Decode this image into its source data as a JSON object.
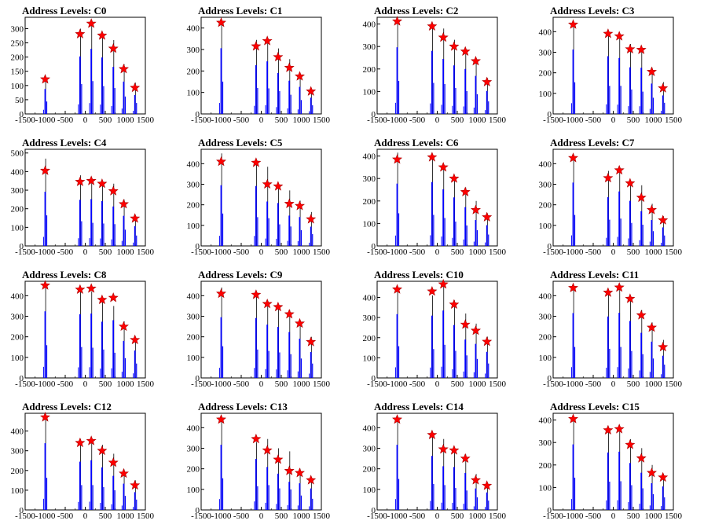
{
  "figure": {
    "panel_count": 16,
    "layout": "4x4 grid",
    "background": "#ffffff"
  },
  "style": {
    "bar_color": "#0000ff",
    "spike_color": "#000000",
    "marker_color": "#ff0000",
    "marker": "star"
  },
  "chart_data": [
    {
      "type": "bar",
      "title": "Address Levels: C0",
      "xlim": [
        -1500,
        1500
      ],
      "ylim": [
        0,
        340
      ],
      "xticks": [
        "-1500",
        "-1000",
        "-500",
        "0",
        "500",
        "1000",
        "1500"
      ],
      "yticks": [
        "0",
        "50",
        "100",
        "150",
        "200",
        "250",
        "300"
      ],
      "peaks": [
        {
          "x": -1000,
          "y": 122,
          "bar": 125
        },
        {
          "x": -130,
          "y": 281,
          "bar": 300
        },
        {
          "x": 150,
          "y": 318,
          "bar": 330
        },
        {
          "x": 420,
          "y": 276,
          "bar": 280
        },
        {
          "x": 700,
          "y": 230,
          "bar": 260
        },
        {
          "x": 960,
          "y": 158,
          "bar": 175
        },
        {
          "x": 1240,
          "y": 92,
          "bar": 110
        }
      ]
    },
    {
      "type": "bar",
      "title": "Address Levels: C1",
      "xlim": [
        -1500,
        1500
      ],
      "ylim": [
        0,
        450
      ],
      "xticks": [
        "-1500",
        "-1000",
        "-500",
        "0",
        "500",
        "1000",
        "1500"
      ],
      "yticks": [
        "0",
        "100",
        "200",
        "300",
        "400"
      ],
      "peaks": [
        {
          "x": -1000,
          "y": 425,
          "bar": 430
        },
        {
          "x": -130,
          "y": 315,
          "bar": 345
        },
        {
          "x": 150,
          "y": 340,
          "bar": 340
        },
        {
          "x": 420,
          "y": 265,
          "bar": 305
        },
        {
          "x": 700,
          "y": 215,
          "bar": 255
        },
        {
          "x": 960,
          "y": 175,
          "bar": 185
        },
        {
          "x": 1240,
          "y": 105,
          "bar": 115
        }
      ]
    },
    {
      "type": "bar",
      "title": "Address Levels: C2",
      "xlim": [
        -1500,
        1500
      ],
      "ylim": [
        0,
        430
      ],
      "xticks": [
        "-1500",
        "-1000",
        "-500",
        "0",
        "500",
        "1000",
        "1500"
      ],
      "yticks": [
        "0",
        "100",
        "200",
        "300",
        "400"
      ],
      "peaks": [
        {
          "x": -1000,
          "y": 412,
          "bar": 420
        },
        {
          "x": -130,
          "y": 390,
          "bar": 395
        },
        {
          "x": 150,
          "y": 340,
          "bar": 380
        },
        {
          "x": 420,
          "y": 300,
          "bar": 330
        },
        {
          "x": 700,
          "y": 278,
          "bar": 290
        },
        {
          "x": 960,
          "y": 235,
          "bar": 250
        },
        {
          "x": 1240,
          "y": 142,
          "bar": 160
        }
      ]
    },
    {
      "type": "bar",
      "title": "Address Levels: C3",
      "xlim": [
        -1500,
        1500
      ],
      "ylim": [
        0,
        470
      ],
      "xticks": [
        "-1500",
        "-1000",
        "-500",
        "0",
        "500",
        "1000",
        "1500"
      ],
      "yticks": [
        "0",
        "100",
        "200",
        "300",
        "400"
      ],
      "peaks": [
        {
          "x": -1000,
          "y": 435,
          "bar": 440
        },
        {
          "x": -130,
          "y": 390,
          "bar": 390
        },
        {
          "x": 150,
          "y": 378,
          "bar": 390
        },
        {
          "x": 420,
          "y": 315,
          "bar": 340
        },
        {
          "x": 700,
          "y": 312,
          "bar": 310
        },
        {
          "x": 960,
          "y": 205,
          "bar": 225
        },
        {
          "x": 1240,
          "y": 125,
          "bar": 155
        }
      ]
    },
    {
      "type": "bar",
      "title": "Address Levels: C4",
      "xlim": [
        -1500,
        1500
      ],
      "ylim": [
        0,
        520
      ],
      "xticks": [
        "-1500",
        "-1000",
        "-500",
        "0",
        "500",
        "1000",
        "1500"
      ],
      "yticks": [
        "0",
        "100",
        "200",
        "300",
        "400",
        "500"
      ],
      "peaks": [
        {
          "x": -1000,
          "y": 405,
          "bar": 470
        },
        {
          "x": -130,
          "y": 345,
          "bar": 380
        },
        {
          "x": 150,
          "y": 350,
          "bar": 355
        },
        {
          "x": 420,
          "y": 335,
          "bar": 345
        },
        {
          "x": 700,
          "y": 295,
          "bar": 335
        },
        {
          "x": 960,
          "y": 225,
          "bar": 250
        },
        {
          "x": 1240,
          "y": 148,
          "bar": 160
        }
      ]
    },
    {
      "type": "bar",
      "title": "Address Levels: C5",
      "xlim": [
        -1500,
        1500
      ],
      "ylim": [
        0,
        470
      ],
      "xticks": [
        "-1500",
        "-1000",
        "-500",
        "0",
        "500",
        "1000",
        "1500"
      ],
      "yticks": [
        "0",
        "100",
        "200",
        "300",
        "400"
      ],
      "peaks": [
        {
          "x": -1000,
          "y": 410,
          "bar": 450
        },
        {
          "x": -130,
          "y": 405,
          "bar": 400
        },
        {
          "x": 150,
          "y": 300,
          "bar": 385
        },
        {
          "x": 420,
          "y": 290,
          "bar": 300
        },
        {
          "x": 700,
          "y": 205,
          "bar": 270
        },
        {
          "x": 960,
          "y": 195,
          "bar": 220
        },
        {
          "x": 1240,
          "y": 130,
          "bar": 165
        }
      ]
    },
    {
      "type": "bar",
      "title": "Address Levels: C6",
      "xlim": [
        -1500,
        1500
      ],
      "ylim": [
        0,
        430
      ],
      "xticks": [
        "-1500",
        "-1000",
        "-500",
        "0",
        "500",
        "1000",
        "1500"
      ],
      "yticks": [
        "0",
        "100",
        "200",
        "300",
        "400"
      ],
      "peaks": [
        {
          "x": -1000,
          "y": 385,
          "bar": 415
        },
        {
          "x": -130,
          "y": 395,
          "bar": 395
        },
        {
          "x": 150,
          "y": 350,
          "bar": 355
        },
        {
          "x": 420,
          "y": 300,
          "bar": 310
        },
        {
          "x": 700,
          "y": 240,
          "bar": 260
        },
        {
          "x": 960,
          "y": 160,
          "bar": 200
        },
        {
          "x": 1240,
          "y": 128,
          "bar": 145
        }
      ]
    },
    {
      "type": "bar",
      "title": "Address Levels: C7",
      "xlim": [
        -1500,
        1500
      ],
      "ylim": [
        0,
        470
      ],
      "xticks": [
        "-1500",
        "-1000",
        "-500",
        "0",
        "500",
        "1000",
        "1500"
      ],
      "yticks": [
        "0",
        "100",
        "200",
        "300",
        "400"
      ],
      "peaks": [
        {
          "x": -1000,
          "y": 428,
          "bar": 430
        },
        {
          "x": -130,
          "y": 330,
          "bar": 365
        },
        {
          "x": 150,
          "y": 368,
          "bar": 380
        },
        {
          "x": 420,
          "y": 305,
          "bar": 320
        },
        {
          "x": 700,
          "y": 235,
          "bar": 295
        },
        {
          "x": 960,
          "y": 175,
          "bar": 205
        },
        {
          "x": 1240,
          "y": 125,
          "bar": 145
        }
      ]
    },
    {
      "type": "bar",
      "title": "Address Levels: C8",
      "xlim": [
        -1500,
        1500
      ],
      "ylim": [
        0,
        470
      ],
      "xticks": [
        "-1500",
        "-1000",
        "-500",
        "0",
        "500",
        "1000",
        "1500"
      ],
      "yticks": [
        "0",
        "100",
        "200",
        "300",
        "400"
      ],
      "peaks": [
        {
          "x": -1000,
          "y": 450,
          "bar": 455
        },
        {
          "x": -130,
          "y": 430,
          "bar": 430
        },
        {
          "x": 150,
          "y": 435,
          "bar": 420
        },
        {
          "x": 420,
          "y": 380,
          "bar": 395
        },
        {
          "x": 700,
          "y": 390,
          "bar": 350
        },
        {
          "x": 960,
          "y": 250,
          "bar": 275
        },
        {
          "x": 1240,
          "y": 185,
          "bar": 200
        }
      ]
    },
    {
      "type": "bar",
      "title": "Address Levels: C9",
      "xlim": [
        -1500,
        1500
      ],
      "ylim": [
        0,
        470
      ],
      "xticks": [
        "-1500",
        "-1000",
        "-500",
        "0",
        "500",
        "1000",
        "1500"
      ],
      "yticks": [
        "0",
        "100",
        "200",
        "300",
        "400"
      ],
      "peaks": [
        {
          "x": -1000,
          "y": 410,
          "bar": 440
        },
        {
          "x": -130,
          "y": 405,
          "bar": 395
        },
        {
          "x": 150,
          "y": 360,
          "bar": 375
        },
        {
          "x": 420,
          "y": 345,
          "bar": 355
        },
        {
          "x": 700,
          "y": 310,
          "bar": 330
        },
        {
          "x": 960,
          "y": 265,
          "bar": 270
        },
        {
          "x": 1240,
          "y": 175,
          "bar": 200
        }
      ]
    },
    {
      "type": "bar",
      "title": "Address Levels: C10",
      "xlim": [
        -1500,
        1500
      ],
      "ylim": [
        0,
        480
      ],
      "xticks": [
        "-1500",
        "-1000",
        "-500",
        "0",
        "500",
        "1000",
        "1500"
      ],
      "yticks": [
        "0",
        "100",
        "200",
        "300",
        "400"
      ],
      "peaks": [
        {
          "x": -1000,
          "y": 440,
          "bar": 450
        },
        {
          "x": -130,
          "y": 430,
          "bar": 410
        },
        {
          "x": 150,
          "y": 465,
          "bar": 470
        },
        {
          "x": 420,
          "y": 365,
          "bar": 385
        },
        {
          "x": 700,
          "y": 265,
          "bar": 320
        },
        {
          "x": 960,
          "y": 235,
          "bar": 270
        },
        {
          "x": 1240,
          "y": 180,
          "bar": 205
        }
      ]
    },
    {
      "type": "bar",
      "title": "Address Levels: C11",
      "xlim": [
        -1500,
        1500
      ],
      "ylim": [
        0,
        470
      ],
      "xticks": [
        "-1500",
        "-1000",
        "-500",
        "0",
        "500",
        "1000",
        "1500"
      ],
      "yticks": [
        "0",
        "100",
        "200",
        "300",
        "400"
      ],
      "peaks": [
        {
          "x": -1000,
          "y": 438,
          "bar": 430
        },
        {
          "x": -130,
          "y": 415,
          "bar": 405
        },
        {
          "x": 150,
          "y": 440,
          "bar": 430
        },
        {
          "x": 420,
          "y": 385,
          "bar": 375
        },
        {
          "x": 700,
          "y": 305,
          "bar": 330
        },
        {
          "x": 960,
          "y": 245,
          "bar": 270
        },
        {
          "x": 1240,
          "y": 150,
          "bar": 185
        }
      ]
    },
    {
      "type": "bar",
      "title": "Address Levels: C12",
      "xlim": [
        -1500,
        1500
      ],
      "ylim": [
        0,
        490
      ],
      "xticks": [
        "-1500",
        "-1000",
        "-500",
        "0",
        "500",
        "1000",
        "1500"
      ],
      "yticks": [
        "0",
        "100",
        "200",
        "300",
        "400"
      ],
      "peaks": [
        {
          "x": -1000,
          "y": 470,
          "bar": 465
        },
        {
          "x": -130,
          "y": 340,
          "bar": 360
        },
        {
          "x": 150,
          "y": 350,
          "bar": 360
        },
        {
          "x": 420,
          "y": 300,
          "bar": 330
        },
        {
          "x": 700,
          "y": 240,
          "bar": 285
        },
        {
          "x": 960,
          "y": 185,
          "bar": 205
        },
        {
          "x": 1240,
          "y": 125,
          "bar": 150
        }
      ]
    },
    {
      "type": "bar",
      "title": "Address Levels: C13",
      "xlim": [
        -1500,
        1500
      ],
      "ylim": [
        0,
        470
      ],
      "xticks": [
        "-1500",
        "-1000",
        "-500",
        "0",
        "500",
        "1000",
        "1500"
      ],
      "yticks": [
        "0",
        "100",
        "200",
        "300",
        "400"
      ],
      "peaks": [
        {
          "x": -1000,
          "y": 440,
          "bar": 440
        },
        {
          "x": -130,
          "y": 345,
          "bar": 330
        },
        {
          "x": 150,
          "y": 290,
          "bar": 345
        },
        {
          "x": 420,
          "y": 245,
          "bar": 300
        },
        {
          "x": 700,
          "y": 190,
          "bar": 285
        },
        {
          "x": 960,
          "y": 180,
          "bar": 200
        },
        {
          "x": 1240,
          "y": 145,
          "bar": 155
        }
      ]
    },
    {
      "type": "bar",
      "title": "Address Levels: C14",
      "xlim": [
        -1500,
        1500
      ],
      "ylim": [
        0,
        470
      ],
      "xticks": [
        "-1500",
        "-1000",
        "-500",
        "0",
        "500",
        "1000",
        "1500"
      ],
      "yticks": [
        "0",
        "100",
        "200",
        "300",
        "400"
      ],
      "peaks": [
        {
          "x": -1000,
          "y": 440,
          "bar": 430
        },
        {
          "x": -130,
          "y": 365,
          "bar": 360
        },
        {
          "x": 150,
          "y": 295,
          "bar": 345
        },
        {
          "x": 420,
          "y": 290,
          "bar": 305
        },
        {
          "x": 700,
          "y": 250,
          "bar": 270
        },
        {
          "x": 960,
          "y": 145,
          "bar": 175
        },
        {
          "x": 1240,
          "y": 118,
          "bar": 130
        }
      ]
    },
    {
      "type": "bar",
      "title": "Address Levels: C15",
      "xlim": [
        -1500,
        1500
      ],
      "ylim": [
        0,
        430
      ],
      "xticks": [
        "-1500",
        "-1000",
        "-500",
        "0",
        "500",
        "1000",
        "1500"
      ],
      "yticks": [
        "0",
        "100",
        "200",
        "300",
        "400"
      ],
      "peaks": [
        {
          "x": -1000,
          "y": 405,
          "bar": 410
        },
        {
          "x": -130,
          "y": 355,
          "bar": 360
        },
        {
          "x": 150,
          "y": 360,
          "bar": 365
        },
        {
          "x": 420,
          "y": 290,
          "bar": 315
        },
        {
          "x": 700,
          "y": 230,
          "bar": 275
        },
        {
          "x": 960,
          "y": 165,
          "bar": 200
        },
        {
          "x": 1240,
          "y": 145,
          "bar": 160
        }
      ]
    }
  ]
}
